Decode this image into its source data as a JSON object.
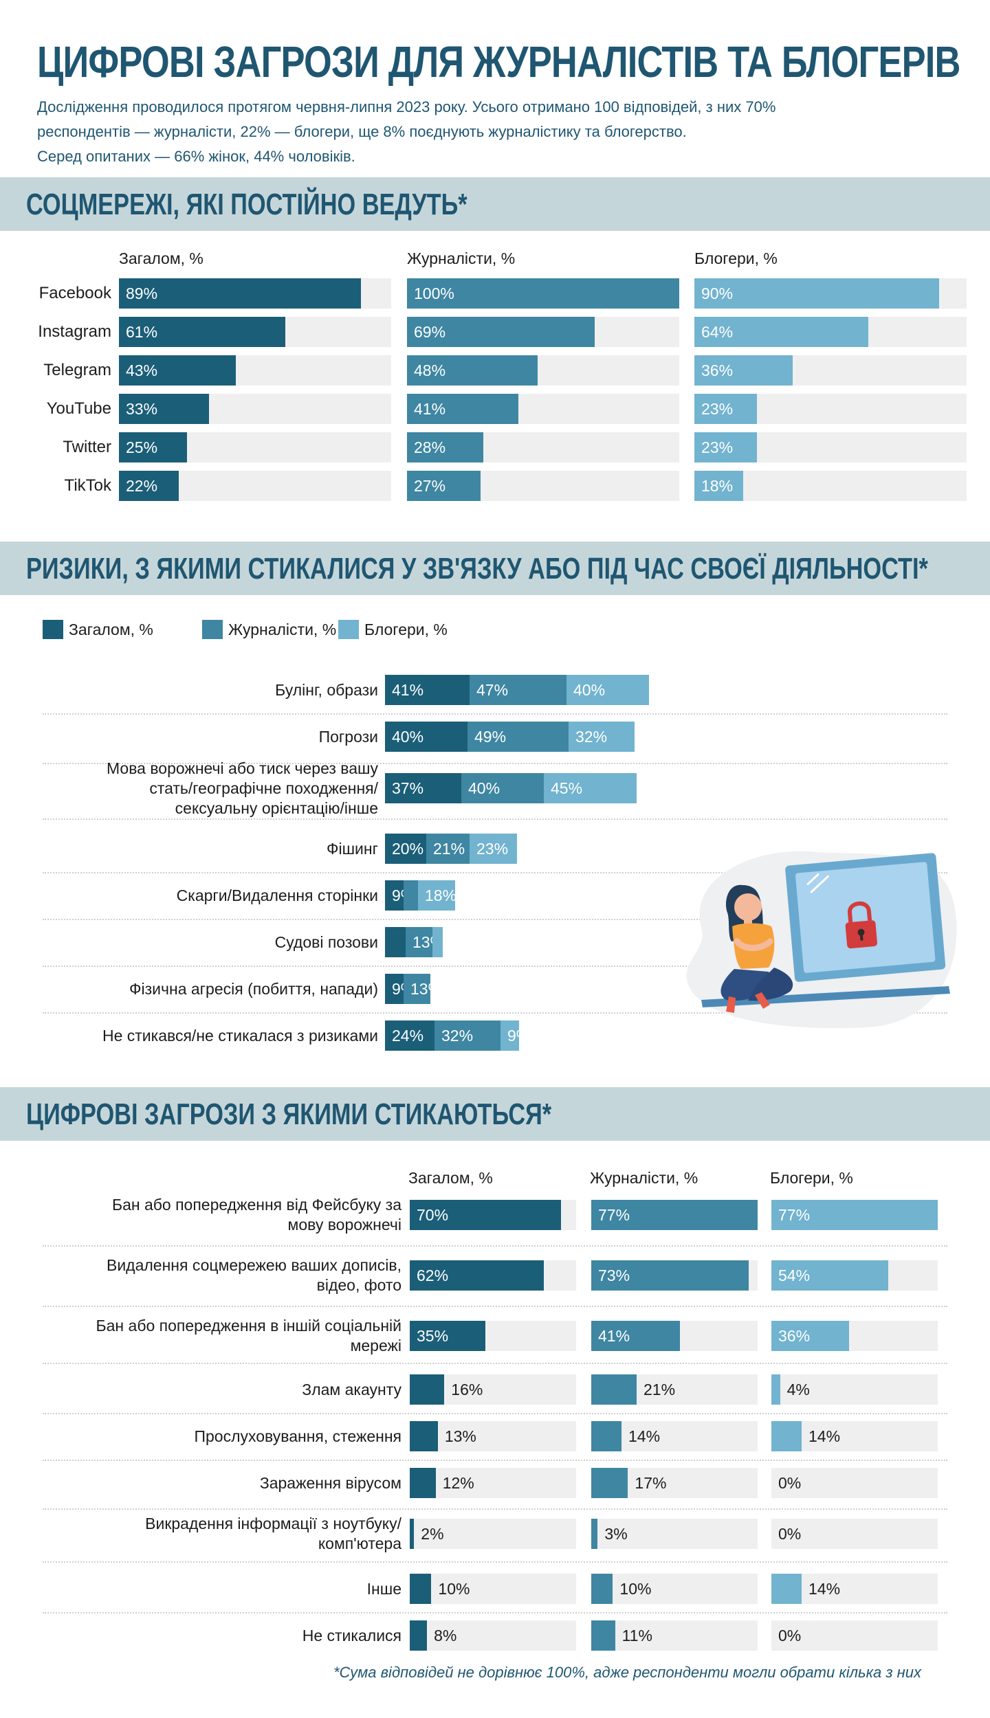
{
  "header": {
    "title": "ЦИФРОВІ ЗАГРОЗИ ДЛЯ ЖУРНАЛІСТІВ ТА БЛОГЕРІВ",
    "intro_lines": [
      "Дослідження проводилося протягом червня-липня 2023 року. Усього отримано 100 відповідей, з них 70%",
      "респондентів — журналісти, 22% — блогери, ще 8% поєднують журналістику та блогерство.",
      "Серед опитаних — 66% жінок, 44% чоловіків."
    ]
  },
  "colors": {
    "overall": "#1b5e78",
    "journalists": "#3e86a2",
    "bloggers": "#72b3cf",
    "track": "#efefef",
    "band": "#c5d6da",
    "accent_text": "#1f5671"
  },
  "sections": {
    "social": {
      "title": "СОЦМЕРЕЖІ, ЯКІ ПОСТІЙНО ВЕДУТЬ*"
    },
    "risks": {
      "title": "РИЗИКИ, З ЯКИМИ СТИКАЛИСЯ У ЗВ'ЯЗКУ АБО ПІД ЧАС СВОЄЇ ДІЯЛЬНОСТІ*"
    },
    "threats": {
      "title": "ЦИФРОВІ ЗАГРОЗИ З ЯКИМИ СТИКАЮТЬСЯ*"
    }
  },
  "footnote": "*Сума відповідей не дорівнює 100%, адже респонденти могли обрати кілька з них",
  "illustration": {
    "icon": "woman-with-laptop-lock-icon"
  },
  "chart_data": [
    {
      "id": "social",
      "type": "bar",
      "orientation": "horizontal",
      "title": "СОЦМЕРЕЖІ, ЯКІ ПОСТІЙНО ВЕДУТЬ*",
      "categories": [
        "Facebook",
        "Instagram",
        "Telegram",
        "YouTube",
        "Twitter",
        "TikTok"
      ],
      "series": [
        {
          "name": "Загалом, %",
          "values": [
            89,
            61,
            43,
            33,
            25,
            22
          ]
        },
        {
          "name": "Журналісти, %",
          "values": [
            100,
            69,
            48,
            41,
            28,
            27
          ]
        },
        {
          "name": "Блогери, %",
          "values": [
            90,
            64,
            36,
            23,
            23,
            18
          ]
        }
      ],
      "xlim": [
        0,
        100
      ],
      "grid": false
    },
    {
      "id": "risks",
      "type": "bar",
      "orientation": "horizontal",
      "stacked": true,
      "title": "РИЗИКИ, З ЯКИМИ СТИКАЛИСЯ У ЗВ'ЯЗКУ АБО ПІД ЧАС СВОЄЇ ДІЯЛЬНОСТІ*",
      "categories": [
        "Булінг, образи",
        "Погрози",
        "Мова ворожнечі або тиск через вашу стать/географічне походження/ сексуальну орієнтацію/інше",
        "Фішинг",
        "Скарги/Видалення сторінки",
        "Судові позови",
        "Фізична агресія (побиття, напади)",
        "Не стикався/не стикалася з ризиками"
      ],
      "category_lines": [
        [
          "Булінг, образи"
        ],
        [
          "Погрози"
        ],
        [
          "Мова ворожнечі або тиск через вашу",
          "стать/географічне походження/",
          "сексуальну орієнтацію/інше"
        ],
        [
          "Фішинг"
        ],
        [
          "Скарги/Видалення сторінки"
        ],
        [
          "Судові позови"
        ],
        [
          "Фізична агресія (побиття, напади)"
        ],
        [
          "Не стикався/не стикалася з ризиками"
        ]
      ],
      "series": [
        {
          "name": "Загалом, %",
          "values": [
            41,
            40,
            37,
            20,
            9,
            10,
            9,
            24
          ],
          "labels": [
            "41%",
            "40%",
            "37%",
            "20%",
            "9%",
            "",
            "9%",
            "24%"
          ]
        },
        {
          "name": "Журналісти, %",
          "values": [
            47,
            49,
            40,
            21,
            7,
            13,
            13,
            32
          ],
          "labels": [
            "47%",
            "49%",
            "40%",
            "21%",
            "",
            "13%",
            "13%",
            "32%"
          ]
        },
        {
          "name": "Блогери, %",
          "values": [
            40,
            32,
            45,
            23,
            18,
            5,
            0,
            9
          ],
          "labels": [
            "40%",
            "32%",
            "45%",
            "23%",
            "18%",
            "",
            "",
            "9%"
          ]
        }
      ],
      "legend": "top-left",
      "grid": false
    },
    {
      "id": "threats",
      "type": "bar",
      "orientation": "horizontal",
      "title": "ЦИФРОВІ ЗАГРОЗИ З ЯКИМИ СТИКАЮТЬСЯ*",
      "categories": [
        "Бан або попередження від Фейсбуку за мову ворожнечі",
        "Видалення соцмережею ваших дописів, відео, фото",
        "Бан або попередження в іншій соціальній мережі",
        "Злам акаунту",
        "Прослуховування, стеження",
        "Зараження вірусом",
        "Викрадення інформації з ноутбуку/ комп'ютера",
        "Інше",
        "Не стикалися"
      ],
      "category_lines": [
        [
          "Бан або попередження від Фейсбуку за",
          "мову ворожнечі"
        ],
        [
          "Видалення соцмережею ваших дописів,",
          "відео, фото"
        ],
        [
          "Бан або попередження в іншій соціальній",
          "мережі"
        ],
        [
          "Злам акаунту"
        ],
        [
          "Прослуховування, стеження"
        ],
        [
          "Зараження вірусом"
        ],
        [
          "Викрадення інформації з ноутбуку/",
          "комп'ютера"
        ],
        [
          "Інше"
        ],
        [
          "Не стикалися"
        ]
      ],
      "series": [
        {
          "name": "Загалом, %",
          "values": [
            70,
            62,
            35,
            16,
            13,
            12,
            2,
            10,
            8
          ]
        },
        {
          "name": "Журналісти, %",
          "values": [
            77,
            73,
            41,
            21,
            14,
            17,
            3,
            10,
            11
          ]
        },
        {
          "name": "Блогери, %",
          "values": [
            77,
            54,
            36,
            4,
            14,
            0,
            0,
            14,
            0
          ]
        }
      ],
      "xlim": [
        0,
        77
      ],
      "grid": false
    }
  ]
}
